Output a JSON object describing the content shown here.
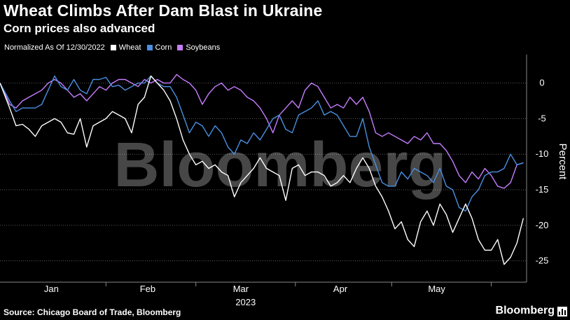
{
  "header": {
    "title": "Wheat Climbs After Dam Blast in Ukraine",
    "subtitle": "Corn prices also advanced"
  },
  "legend": {
    "note": "Normalized As Of 12/30/2022",
    "items": [
      {
        "label": "Wheat",
        "color": "#ffffff"
      },
      {
        "label": "Corn",
        "color": "#4a90e2"
      },
      {
        "label": "Soybeans",
        "color": "#c77dff"
      }
    ]
  },
  "watermark": "Bloomberg",
  "footer": {
    "source": "Source: Chicago Board of Trade, Bloomberg",
    "brand": "Bloomberg"
  },
  "colors": {
    "background": "#000000",
    "grid": "#5a5a5a",
    "wheat": "#ffffff",
    "corn": "#4a90e2",
    "soybeans": "#c77dff"
  },
  "chart_data": {
    "type": "line",
    "title": "Wheat Climbs After Dam Blast in Ukraine",
    "subtitle": "Corn prices also advanced",
    "ylabel": "Percent",
    "ylim": [
      -28,
      4
    ],
    "yticks": [
      0,
      -5,
      -10,
      -15,
      -20,
      -25
    ],
    "xlim": [
      "2022-12-30",
      "2023-06-12"
    ],
    "xticks": [
      {
        "label": "Jan",
        "date": "2023-01-15"
      },
      {
        "label": "Feb",
        "date": "2023-02-14"
      },
      {
        "label": "Mar",
        "date": "2023-03-15"
      },
      {
        "label": "Apr",
        "date": "2023-04-15"
      },
      {
        "label": "May",
        "date": "2023-05-15"
      }
    ],
    "year_label": "2023",
    "grid": "horizontal",
    "legend_position": "top-left",
    "series": [
      {
        "name": "Wheat",
        "color": "#ffffff",
        "points": [
          [
            "2022-12-30",
            0
          ],
          [
            "2023-01-02",
            -3.5
          ],
          [
            "2023-01-04",
            -6
          ],
          [
            "2023-01-06",
            -5.8
          ],
          [
            "2023-01-08",
            -6.5
          ],
          [
            "2023-01-10",
            -7.5
          ],
          [
            "2023-01-12",
            -6
          ],
          [
            "2023-01-14",
            -5.5
          ],
          [
            "2023-01-16",
            -5
          ],
          [
            "2023-01-18",
            -5.5
          ],
          [
            "2023-01-20",
            -7
          ],
          [
            "2023-01-22",
            -7.2
          ],
          [
            "2023-01-24",
            -5
          ],
          [
            "2023-01-26",
            -9
          ],
          [
            "2023-01-28",
            -6
          ],
          [
            "2023-01-30",
            -5.5
          ],
          [
            "2023-02-01",
            -5
          ],
          [
            "2023-02-03",
            -4
          ],
          [
            "2023-02-05",
            -4.5
          ],
          [
            "2023-02-07",
            -5
          ],
          [
            "2023-02-09",
            -7
          ],
          [
            "2023-02-11",
            -3
          ],
          [
            "2023-02-13",
            -2
          ],
          [
            "2023-02-15",
            1
          ],
          [
            "2023-02-17",
            0
          ],
          [
            "2023-02-19",
            -1
          ],
          [
            "2023-02-21",
            -2.5
          ],
          [
            "2023-02-23",
            -5
          ],
          [
            "2023-02-25",
            -8
          ],
          [
            "2023-02-27",
            -10
          ],
          [
            "2023-03-01",
            -11.5
          ],
          [
            "2023-03-03",
            -11
          ],
          [
            "2023-03-05",
            -12
          ],
          [
            "2023-03-07",
            -11.5
          ],
          [
            "2023-03-09",
            -12.5
          ],
          [
            "2023-03-11",
            -13
          ],
          [
            "2023-03-13",
            -16
          ],
          [
            "2023-03-15",
            -14
          ],
          [
            "2023-03-17",
            -13
          ],
          [
            "2023-03-19",
            -12
          ],
          [
            "2023-03-21",
            -10.5
          ],
          [
            "2023-03-23",
            -12
          ],
          [
            "2023-03-25",
            -12.5
          ],
          [
            "2023-03-27",
            -13
          ],
          [
            "2023-03-29",
            -16.5
          ],
          [
            "2023-03-31",
            -12
          ],
          [
            "2023-04-02",
            -11.5
          ],
          [
            "2023-04-04",
            -13
          ],
          [
            "2023-04-06",
            -12.5
          ],
          [
            "2023-04-08",
            -12.5
          ],
          [
            "2023-04-10",
            -13
          ],
          [
            "2023-04-12",
            -14.5
          ],
          [
            "2023-04-14",
            -14
          ],
          [
            "2023-04-16",
            -13
          ],
          [
            "2023-04-18",
            -14
          ],
          [
            "2023-04-20",
            -12
          ],
          [
            "2023-04-22",
            -10.5
          ],
          [
            "2023-04-24",
            -12
          ],
          [
            "2023-04-26",
            -14.5
          ],
          [
            "2023-04-28",
            -16
          ],
          [
            "2023-04-30",
            -18
          ],
          [
            "2023-05-02",
            -20.5
          ],
          [
            "2023-05-04",
            -19.5
          ],
          [
            "2023-05-06",
            -22
          ],
          [
            "2023-05-08",
            -23
          ],
          [
            "2023-05-10",
            -19.5
          ],
          [
            "2023-05-12",
            -18
          ],
          [
            "2023-05-14",
            -20
          ],
          [
            "2023-05-16",
            -17
          ],
          [
            "2023-05-18",
            -18.5
          ],
          [
            "2023-05-20",
            -21
          ],
          [
            "2023-05-22",
            -19
          ],
          [
            "2023-05-24",
            -17
          ],
          [
            "2023-05-26",
            -19
          ],
          [
            "2023-05-28",
            -22
          ],
          [
            "2023-05-30",
            -23.5
          ],
          [
            "2023-06-01",
            -23.5
          ],
          [
            "2023-06-03",
            -22
          ],
          [
            "2023-06-05",
            -25.5
          ],
          [
            "2023-06-07",
            -24.5
          ],
          [
            "2023-06-09",
            -22.5
          ],
          [
            "2023-06-11",
            -19
          ]
        ]
      },
      {
        "name": "Corn",
        "color": "#4a90e2",
        "points": [
          [
            "2022-12-30",
            0
          ],
          [
            "2023-01-02",
            -2.5
          ],
          [
            "2023-01-04",
            -4
          ],
          [
            "2023-01-06",
            -3.5
          ],
          [
            "2023-01-08",
            -3.5
          ],
          [
            "2023-01-10",
            -3.5
          ],
          [
            "2023-01-12",
            -3
          ],
          [
            "2023-01-14",
            -1
          ],
          [
            "2023-01-16",
            1
          ],
          [
            "2023-01-18",
            -0.5
          ],
          [
            "2023-01-20",
            -1
          ],
          [
            "2023-01-22",
            0.5
          ],
          [
            "2023-01-24",
            -1
          ],
          [
            "2023-01-26",
            -1.5
          ],
          [
            "2023-01-28",
            0.5
          ],
          [
            "2023-01-30",
            0.5
          ],
          [
            "2023-02-01",
            0.8
          ],
          [
            "2023-02-03",
            -0.5
          ],
          [
            "2023-02-05",
            -0.3
          ],
          [
            "2023-02-07",
            -1
          ],
          [
            "2023-02-09",
            -0.5
          ],
          [
            "2023-02-11",
            0
          ],
          [
            "2023-02-13",
            0
          ],
          [
            "2023-02-15",
            1
          ],
          [
            "2023-02-17",
            0
          ],
          [
            "2023-02-19",
            -0.5
          ],
          [
            "2023-02-21",
            -0.5
          ],
          [
            "2023-02-23",
            -2
          ],
          [
            "2023-02-25",
            -4.5
          ],
          [
            "2023-02-27",
            -7
          ],
          [
            "2023-03-01",
            -5.5
          ],
          [
            "2023-03-03",
            -6
          ],
          [
            "2023-03-05",
            -7.5
          ],
          [
            "2023-03-07",
            -6
          ],
          [
            "2023-03-09",
            -7
          ],
          [
            "2023-03-11",
            -9
          ],
          [
            "2023-03-13",
            -10
          ],
          [
            "2023-03-15",
            -8
          ],
          [
            "2023-03-17",
            -8.5
          ],
          [
            "2023-03-19",
            -7
          ],
          [
            "2023-03-21",
            -8
          ],
          [
            "2023-03-23",
            -6.5
          ],
          [
            "2023-03-25",
            -5
          ],
          [
            "2023-03-27",
            -4.5
          ],
          [
            "2023-03-29",
            -6.5
          ],
          [
            "2023-03-31",
            -7
          ],
          [
            "2023-04-02",
            -4.5
          ],
          [
            "2023-04-04",
            -4
          ],
          [
            "2023-04-06",
            -3.5
          ],
          [
            "2023-04-08",
            -2.5
          ],
          [
            "2023-04-10",
            -4.5
          ],
          [
            "2023-04-12",
            -4
          ],
          [
            "2023-04-14",
            -4.5
          ],
          [
            "2023-04-16",
            -6
          ],
          [
            "2023-04-18",
            -7.5
          ],
          [
            "2023-04-20",
            -7.5
          ],
          [
            "2023-04-22",
            -5
          ],
          [
            "2023-04-24",
            -9
          ],
          [
            "2023-04-26",
            -11.5
          ],
          [
            "2023-04-28",
            -14
          ],
          [
            "2023-04-30",
            -14.5
          ],
          [
            "2023-05-02",
            -14.5
          ],
          [
            "2023-05-04",
            -12.5
          ],
          [
            "2023-05-06",
            -13.5
          ],
          [
            "2023-05-08",
            -12
          ],
          [
            "2023-05-10",
            -12.5
          ],
          [
            "2023-05-12",
            -13
          ],
          [
            "2023-05-14",
            -14
          ],
          [
            "2023-05-16",
            -12
          ],
          [
            "2023-05-18",
            -14.5
          ],
          [
            "2023-05-20",
            -15
          ],
          [
            "2023-05-22",
            -17.5
          ],
          [
            "2023-05-24",
            -18
          ],
          [
            "2023-05-26",
            -16
          ],
          [
            "2023-05-28",
            -15
          ],
          [
            "2023-05-30",
            -13
          ],
          [
            "2023-06-01",
            -12.5
          ],
          [
            "2023-06-03",
            -12.5
          ],
          [
            "2023-06-05",
            -12
          ],
          [
            "2023-06-07",
            -10
          ],
          [
            "2023-06-09",
            -11.5
          ],
          [
            "2023-06-11",
            -11.2
          ]
        ]
      },
      {
        "name": "Soybeans",
        "color": "#c77dff",
        "points": [
          [
            "2022-12-30",
            0
          ],
          [
            "2023-01-02",
            -3
          ],
          [
            "2023-01-04",
            -3.5
          ],
          [
            "2023-01-06",
            -2.5
          ],
          [
            "2023-01-08",
            -2
          ],
          [
            "2023-01-10",
            -1.5
          ],
          [
            "2023-01-12",
            -1
          ],
          [
            "2023-01-14",
            0
          ],
          [
            "2023-01-16",
            0.5
          ],
          [
            "2023-01-18",
            0
          ],
          [
            "2023-01-20",
            -1
          ],
          [
            "2023-01-22",
            -2
          ],
          [
            "2023-01-24",
            -1.5
          ],
          [
            "2023-01-26",
            -2.5
          ],
          [
            "2023-01-28",
            -1.5
          ],
          [
            "2023-01-30",
            -0.5
          ],
          [
            "2023-02-01",
            -1
          ],
          [
            "2023-02-03",
            0
          ],
          [
            "2023-02-05",
            0.5
          ],
          [
            "2023-02-07",
            0.5
          ],
          [
            "2023-02-09",
            0
          ],
          [
            "2023-02-11",
            -0.5
          ],
          [
            "2023-02-13",
            0.5
          ],
          [
            "2023-02-15",
            0
          ],
          [
            "2023-02-17",
            0.5
          ],
          [
            "2023-02-19",
            0
          ],
          [
            "2023-02-21",
            0
          ],
          [
            "2023-02-23",
            1.2
          ],
          [
            "2023-02-25",
            0.5
          ],
          [
            "2023-02-27",
            0
          ],
          [
            "2023-03-01",
            -1
          ],
          [
            "2023-03-03",
            -3
          ],
          [
            "2023-03-05",
            -1.5
          ],
          [
            "2023-03-07",
            -0.5
          ],
          [
            "2023-03-09",
            0
          ],
          [
            "2023-03-11",
            -1
          ],
          [
            "2023-03-13",
            -0.5
          ],
          [
            "2023-03-15",
            -1
          ],
          [
            "2023-03-17",
            -2
          ],
          [
            "2023-03-19",
            -2.5
          ],
          [
            "2023-03-21",
            -3.5
          ],
          [
            "2023-03-23",
            -5
          ],
          [
            "2023-03-25",
            -7
          ],
          [
            "2023-03-27",
            -4.5
          ],
          [
            "2023-03-29",
            -3.5
          ],
          [
            "2023-03-31",
            -2.5
          ],
          [
            "2023-04-02",
            -3.5
          ],
          [
            "2023-04-04",
            -1
          ],
          [
            "2023-04-06",
            0
          ],
          [
            "2023-04-08",
            -0.5
          ],
          [
            "2023-04-10",
            -2
          ],
          [
            "2023-04-12",
            -3.5
          ],
          [
            "2023-04-14",
            -3
          ],
          [
            "2023-04-16",
            -3.5
          ],
          [
            "2023-04-18",
            -2
          ],
          [
            "2023-04-20",
            -3
          ],
          [
            "2023-04-22",
            -2
          ],
          [
            "2023-04-24",
            -4
          ],
          [
            "2023-04-26",
            -7
          ],
          [
            "2023-04-28",
            -7.5
          ],
          [
            "2023-04-30",
            -7
          ],
          [
            "2023-05-02",
            -7.5
          ],
          [
            "2023-05-04",
            -8
          ],
          [
            "2023-05-06",
            -8.5
          ],
          [
            "2023-05-08",
            -7.5
          ],
          [
            "2023-05-10",
            -8
          ],
          [
            "2023-05-12",
            -7
          ],
          [
            "2023-05-14",
            -8.5
          ],
          [
            "2023-05-16",
            -8.5
          ],
          [
            "2023-05-18",
            -9.5
          ],
          [
            "2023-05-20",
            -11
          ],
          [
            "2023-05-22",
            -13
          ],
          [
            "2023-05-24",
            -14
          ],
          [
            "2023-05-26",
            -12.5
          ],
          [
            "2023-05-28",
            -13.5
          ],
          [
            "2023-05-30",
            -12
          ],
          [
            "2023-06-01",
            -13
          ],
          [
            "2023-06-03",
            -14.5
          ],
          [
            "2023-06-05",
            -14.8
          ],
          [
            "2023-06-07",
            -14
          ],
          [
            "2023-06-09",
            -11.5
          ],
          [
            "2023-06-11",
            -11.2
          ]
        ]
      }
    ]
  }
}
